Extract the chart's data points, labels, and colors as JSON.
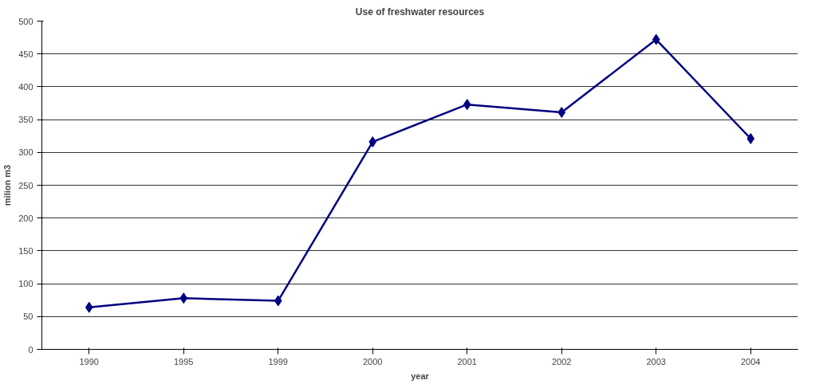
{
  "chart_data": {
    "type": "line",
    "title": "Use of freshwater resources",
    "xlabel": "year",
    "ylabel": "milion m3",
    "categories": [
      "1990",
      "1995",
      "1999",
      "2000",
      "2001",
      "2002",
      "2003",
      "2004"
    ],
    "series": [
      {
        "color": "#000080",
        "values": [
          64,
          78,
          74,
          316,
          373,
          361,
          472,
          321
        ]
      }
    ],
    "ylim": [
      0,
      500
    ],
    "yticks": [
      0,
      50,
      100,
      150,
      200,
      250,
      300,
      350,
      400,
      450,
      500
    ],
    "grid": "y",
    "marker": "diamond",
    "line_style": "solid"
  }
}
